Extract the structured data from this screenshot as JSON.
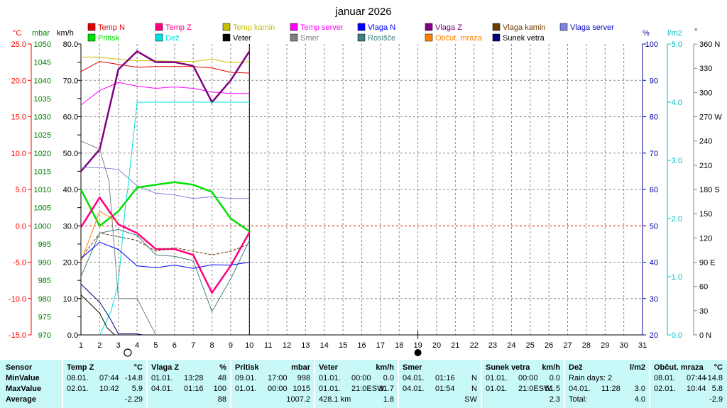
{
  "title": "januar 2026",
  "colors": {
    "temp_n": "#e00000",
    "temp_z": "#ff0080",
    "temp_kamin": "#c8c000",
    "temp_server": "#ff00ff",
    "vlaga_n": "#0000ff",
    "vlaga_z": "#800080",
    "vlaga_kamin": "#6b3a00",
    "vlaga_server": "#8080e0",
    "pritisk": "#00e000",
    "dez": "#00e0e0",
    "veter": "#000000",
    "smer": "#808080",
    "rosisce": "#408080",
    "obcut_mraza": "#ff8000",
    "sunek_vetra": "#000080",
    "axis_c": "#ff0000",
    "axis_mbar": "#008000",
    "axis_pct": "#0000a0",
    "axis_rain": "#00c0c0",
    "table_bg": "#c8f8f8"
  },
  "legend": [
    {
      "key": "temp_n",
      "label": "Temp N"
    },
    {
      "key": "temp_z",
      "label": "Temp Z"
    },
    {
      "key": "temp_kamin",
      "label": "Temp kamin"
    },
    {
      "key": "temp_server",
      "label": "Temp server"
    },
    {
      "key": "vlaga_n",
      "label": "Vlaga N"
    },
    {
      "key": "vlaga_z",
      "label": "Vlaga Z"
    },
    {
      "key": "vlaga_kamin",
      "label": "Vlaga kamin"
    },
    {
      "key": "vlaga_server",
      "label": "Vlaga server"
    },
    {
      "key": "pritisk",
      "label": "Pritisk"
    },
    {
      "key": "dez",
      "label": "Dež"
    },
    {
      "key": "veter",
      "label": "Veter"
    },
    {
      "key": "smer",
      "label": "Smer"
    },
    {
      "key": "rosisce",
      "label": "Rosišče"
    },
    {
      "key": "obcut_mraza",
      "label": "Občut. mraza"
    },
    {
      "key": "sunek_vetra",
      "label": "Sunek vetra"
    }
  ],
  "chart_data": {
    "type": "line",
    "title": "januar 2026",
    "x": {
      "min": 1,
      "max": 31,
      "ticks": [
        "1",
        "2",
        "3",
        "4",
        "5",
        "6",
        "7",
        "8",
        "9",
        "10",
        "11",
        "12",
        "13",
        "14",
        "15",
        "16",
        "17",
        "18",
        "19",
        "20",
        "21",
        "22",
        "23",
        "24",
        "25",
        "26",
        "27",
        "28",
        "29",
        "30",
        "31"
      ]
    },
    "axes": {
      "temp": {
        "unit": "°C",
        "min": -15,
        "max": 25,
        "ticks": [
          "25.0",
          "20.0",
          "15.0",
          "10.0",
          "5.0",
          "0.0",
          "-5.0",
          "-10.0",
          "-15.0"
        ]
      },
      "pressure": {
        "unit": "mbar",
        "min": 970,
        "max": 1050,
        "ticks": [
          "1050",
          "1045",
          "1040",
          "1035",
          "1030",
          "1025",
          "1020",
          "1015",
          "1010",
          "1005",
          "1000",
          "995",
          "990",
          "985",
          "980",
          "975",
          "970"
        ]
      },
      "wind": {
        "unit": "km/h",
        "min": 0,
        "max": 80,
        "ticks": [
          "80.0",
          "70.0",
          "60.0",
          "50.0",
          "40.0",
          "30.0",
          "20.0",
          "10.0",
          "0.0"
        ]
      },
      "humidity": {
        "unit": "%",
        "min": 20,
        "max": 100,
        "ticks": [
          "100",
          "90",
          "80",
          "70",
          "60",
          "50",
          "40",
          "30",
          "20"
        ]
      },
      "rain": {
        "unit": "l/m2",
        "min": 0,
        "max": 5,
        "ticks": [
          "5.0",
          "4.0",
          "3.0",
          "2.0",
          "1.0",
          "0.0"
        ]
      },
      "direction": {
        "unit": "°",
        "min": 0,
        "max": 360,
        "ticks": [
          "360 N",
          "330",
          "300",
          "270 W",
          "240",
          "210",
          "180 S",
          "150",
          "120",
          "90  E",
          "60",
          "30",
          "0   N"
        ]
      }
    },
    "moon": {
      "full_moon_day": 3.5,
      "new_moon_day": 19
    },
    "series": [
      {
        "key": "temp_n",
        "name": "Temp N",
        "axis": "temp",
        "x": [
          1,
          2,
          3,
          4,
          5,
          6,
          7,
          8,
          9,
          10
        ],
        "y": [
          21.2,
          22.6,
          22.2,
          21.8,
          21.9,
          21.9,
          21.9,
          21.7,
          21.1,
          21.0
        ]
      },
      {
        "key": "temp_kamin",
        "name": "Temp kamin",
        "axis": "temp",
        "x": [
          1,
          2,
          3,
          4,
          5,
          6,
          7,
          8,
          9,
          10
        ],
        "y": [
          23.2,
          23.2,
          22.9,
          22.7,
          22.7,
          22.6,
          22.6,
          22.9,
          22.4,
          22.6
        ]
      },
      {
        "key": "temp_server",
        "name": "Temp server",
        "axis": "temp",
        "x": [
          1,
          2,
          3,
          4,
          5,
          6,
          7,
          8,
          9,
          10
        ],
        "y": [
          16.6,
          18.6,
          19.7,
          19.2,
          18.9,
          19.1,
          18.9,
          18.4,
          18.2,
          18.2
        ]
      },
      {
        "key": "vlaga_z",
        "name": "Vlaga Z",
        "axis": "humidity",
        "x": [
          1,
          2,
          3,
          4,
          5,
          6,
          7,
          8,
          9,
          10
        ],
        "y": [
          65,
          71,
          93,
          98,
          95,
          95,
          94,
          84,
          90,
          98
        ]
      },
      {
        "key": "vlaga_server",
        "name": "Vlaga server",
        "axis": "humidity",
        "x": [
          1,
          2,
          3,
          4,
          5,
          6,
          7,
          8,
          9,
          10
        ],
        "y": [
          66,
          66,
          65.5,
          61,
          59,
          58.5,
          57.5,
          58,
          57.5,
          57.5
        ]
      },
      {
        "key": "pritisk",
        "name": "Pritisk",
        "axis": "pressure",
        "x": [
          1,
          2,
          3,
          4,
          5,
          6,
          7,
          8,
          9,
          10
        ],
        "y": [
          1010,
          1000,
          1004,
          1010.5,
          1011.3,
          1012,
          1011.3,
          1009.3,
          1002,
          998.5
        ]
      },
      {
        "key": "dez",
        "name": "Dež",
        "axis": "rain",
        "x": [
          2,
          2.6,
          3,
          3.4,
          3.5,
          4,
          5,
          6,
          7,
          8,
          9,
          10
        ],
        "y": [
          0,
          0.4,
          0.9,
          2.3,
          2.5,
          4.0,
          4.0,
          4.0,
          4.0,
          4.0,
          4.0,
          4.0
        ]
      },
      {
        "key": "temp_z",
        "name": "Temp Z",
        "axis": "temp",
        "x": [
          1,
          2,
          3,
          4,
          5,
          6,
          7,
          8,
          9,
          10
        ],
        "y": [
          -0.2,
          3.9,
          0.2,
          -1.0,
          -3.2,
          -3.2,
          -4.0,
          -9.2,
          -5.5,
          -0.9
        ]
      },
      {
        "key": "vlaga_kamin",
        "name": "Vlaga kamin",
        "axis": "humidity",
        "x": [
          1,
          2,
          3,
          4,
          5,
          6,
          7,
          8,
          9,
          10
        ],
        "y": [
          41,
          48,
          47,
          46,
          43,
          44,
          43,
          42,
          43,
          45
        ]
      },
      {
        "key": "rosisce",
        "name": "Rosišče",
        "axis": "temp",
        "x": [
          1,
          2,
          3,
          4,
          5,
          6,
          7,
          8,
          9,
          10
        ],
        "y": [
          -7.0,
          -1.0,
          -0.5,
          -1.3,
          -4.0,
          -4.2,
          -4.8,
          -11.8,
          -7.3,
          -2.0
        ]
      },
      {
        "key": "obcut_mraza",
        "name": "Občut. mraza",
        "axis": "temp",
        "x": [
          1,
          2,
          3
        ],
        "y": [
          -5.0,
          2.0,
          0.5
        ]
      },
      {
        "key": "vlaga_n",
        "name": "Vlaga N",
        "axis": "humidity",
        "x": [
          1,
          2,
          3,
          4,
          5,
          6,
          7,
          8,
          9,
          10
        ],
        "y": [
          41,
          45.5,
          43.5,
          39,
          38.5,
          39.2,
          38.3,
          39.3,
          39.2,
          40
        ]
      },
      {
        "key": "smer",
        "name": "Smer",
        "axis": "direction",
        "x": [
          1,
          2,
          2.5,
          3,
          3.6,
          4,
          5
        ],
        "y": [
          240,
          230,
          190,
          45,
          45,
          45,
          0
        ]
      },
      {
        "key": "veter",
        "name": "Veter",
        "axis": "wind",
        "x": [
          1,
          2,
          2.4,
          2.8,
          3
        ],
        "y": [
          11,
          6,
          2,
          0,
          0
        ]
      },
      {
        "key": "sunek_vetra",
        "name": "Sunek vetra",
        "axis": "wind",
        "x": [
          1,
          2,
          2.5,
          3,
          3.4,
          4,
          4.3
        ],
        "y": [
          14,
          9,
          5,
          0.3,
          0.3,
          0.3,
          0
        ]
      }
    ]
  },
  "table": {
    "row_labels": [
      "Sensor",
      "MinValue",
      "MaxValue",
      "Average"
    ],
    "columns": [
      {
        "title": "Temp Z",
        "unit": "°C",
        "min": [
          "08.01.",
          "07:44",
          "-14.8"
        ],
        "max": [
          "02.01.",
          "10:42",
          "5.9"
        ],
        "avg": [
          "",
          "",
          "-2.29"
        ]
      },
      {
        "title": "Vlaga Z",
        "unit": "%",
        "min": [
          "01.01.",
          "13:28",
          "48"
        ],
        "max": [
          "04.01.",
          "01:16",
          "100"
        ],
        "avg": [
          "",
          "",
          "88"
        ]
      },
      {
        "title": "Pritisk",
        "unit": "mbar",
        "min": [
          "09.01.",
          "17:00",
          "998"
        ],
        "max": [
          "01.01.",
          "00:00",
          "1015"
        ],
        "avg": [
          "",
          "",
          "1007.2"
        ]
      },
      {
        "title": "Veter",
        "unit": "km/h",
        "min": [
          "01.01.",
          "00:00",
          "0.0"
        ],
        "max": [
          "01.01.",
          "21:0ESW",
          "31.7"
        ],
        "avg": [
          "428.1 km",
          "",
          "1.8"
        ]
      },
      {
        "title": "Smer",
        "unit": "",
        "min": [
          "04.01.",
          "01:16",
          "N"
        ],
        "max": [
          "04.01.",
          "01:54",
          "N"
        ],
        "avg": [
          "",
          "",
          "SW"
        ]
      },
      {
        "title": "Sunek vetra",
        "unit": "km/h",
        "min": [
          "01.01.",
          "00:00",
          "0.0"
        ],
        "max": [
          "01.01.",
          "21:0ESW",
          "51.5"
        ],
        "avg": [
          "",
          "",
          "2.3"
        ]
      },
      {
        "title": "Dež",
        "unit": "l/m2",
        "min": [
          "Rain days: 2",
          "",
          ""
        ],
        "max": [
          "04.01.",
          "11:28",
          "3.0"
        ],
        "avg": [
          "Total:",
          "",
          "4.0"
        ]
      },
      {
        "title": "Občut. mraza",
        "unit": "°C",
        "min": [
          "08.01.",
          "07:44",
          "-14.8"
        ],
        "max": [
          "02.01.",
          "10:44",
          "5.8"
        ],
        "avg": [
          "",
          "",
          "-2.9"
        ]
      }
    ]
  }
}
